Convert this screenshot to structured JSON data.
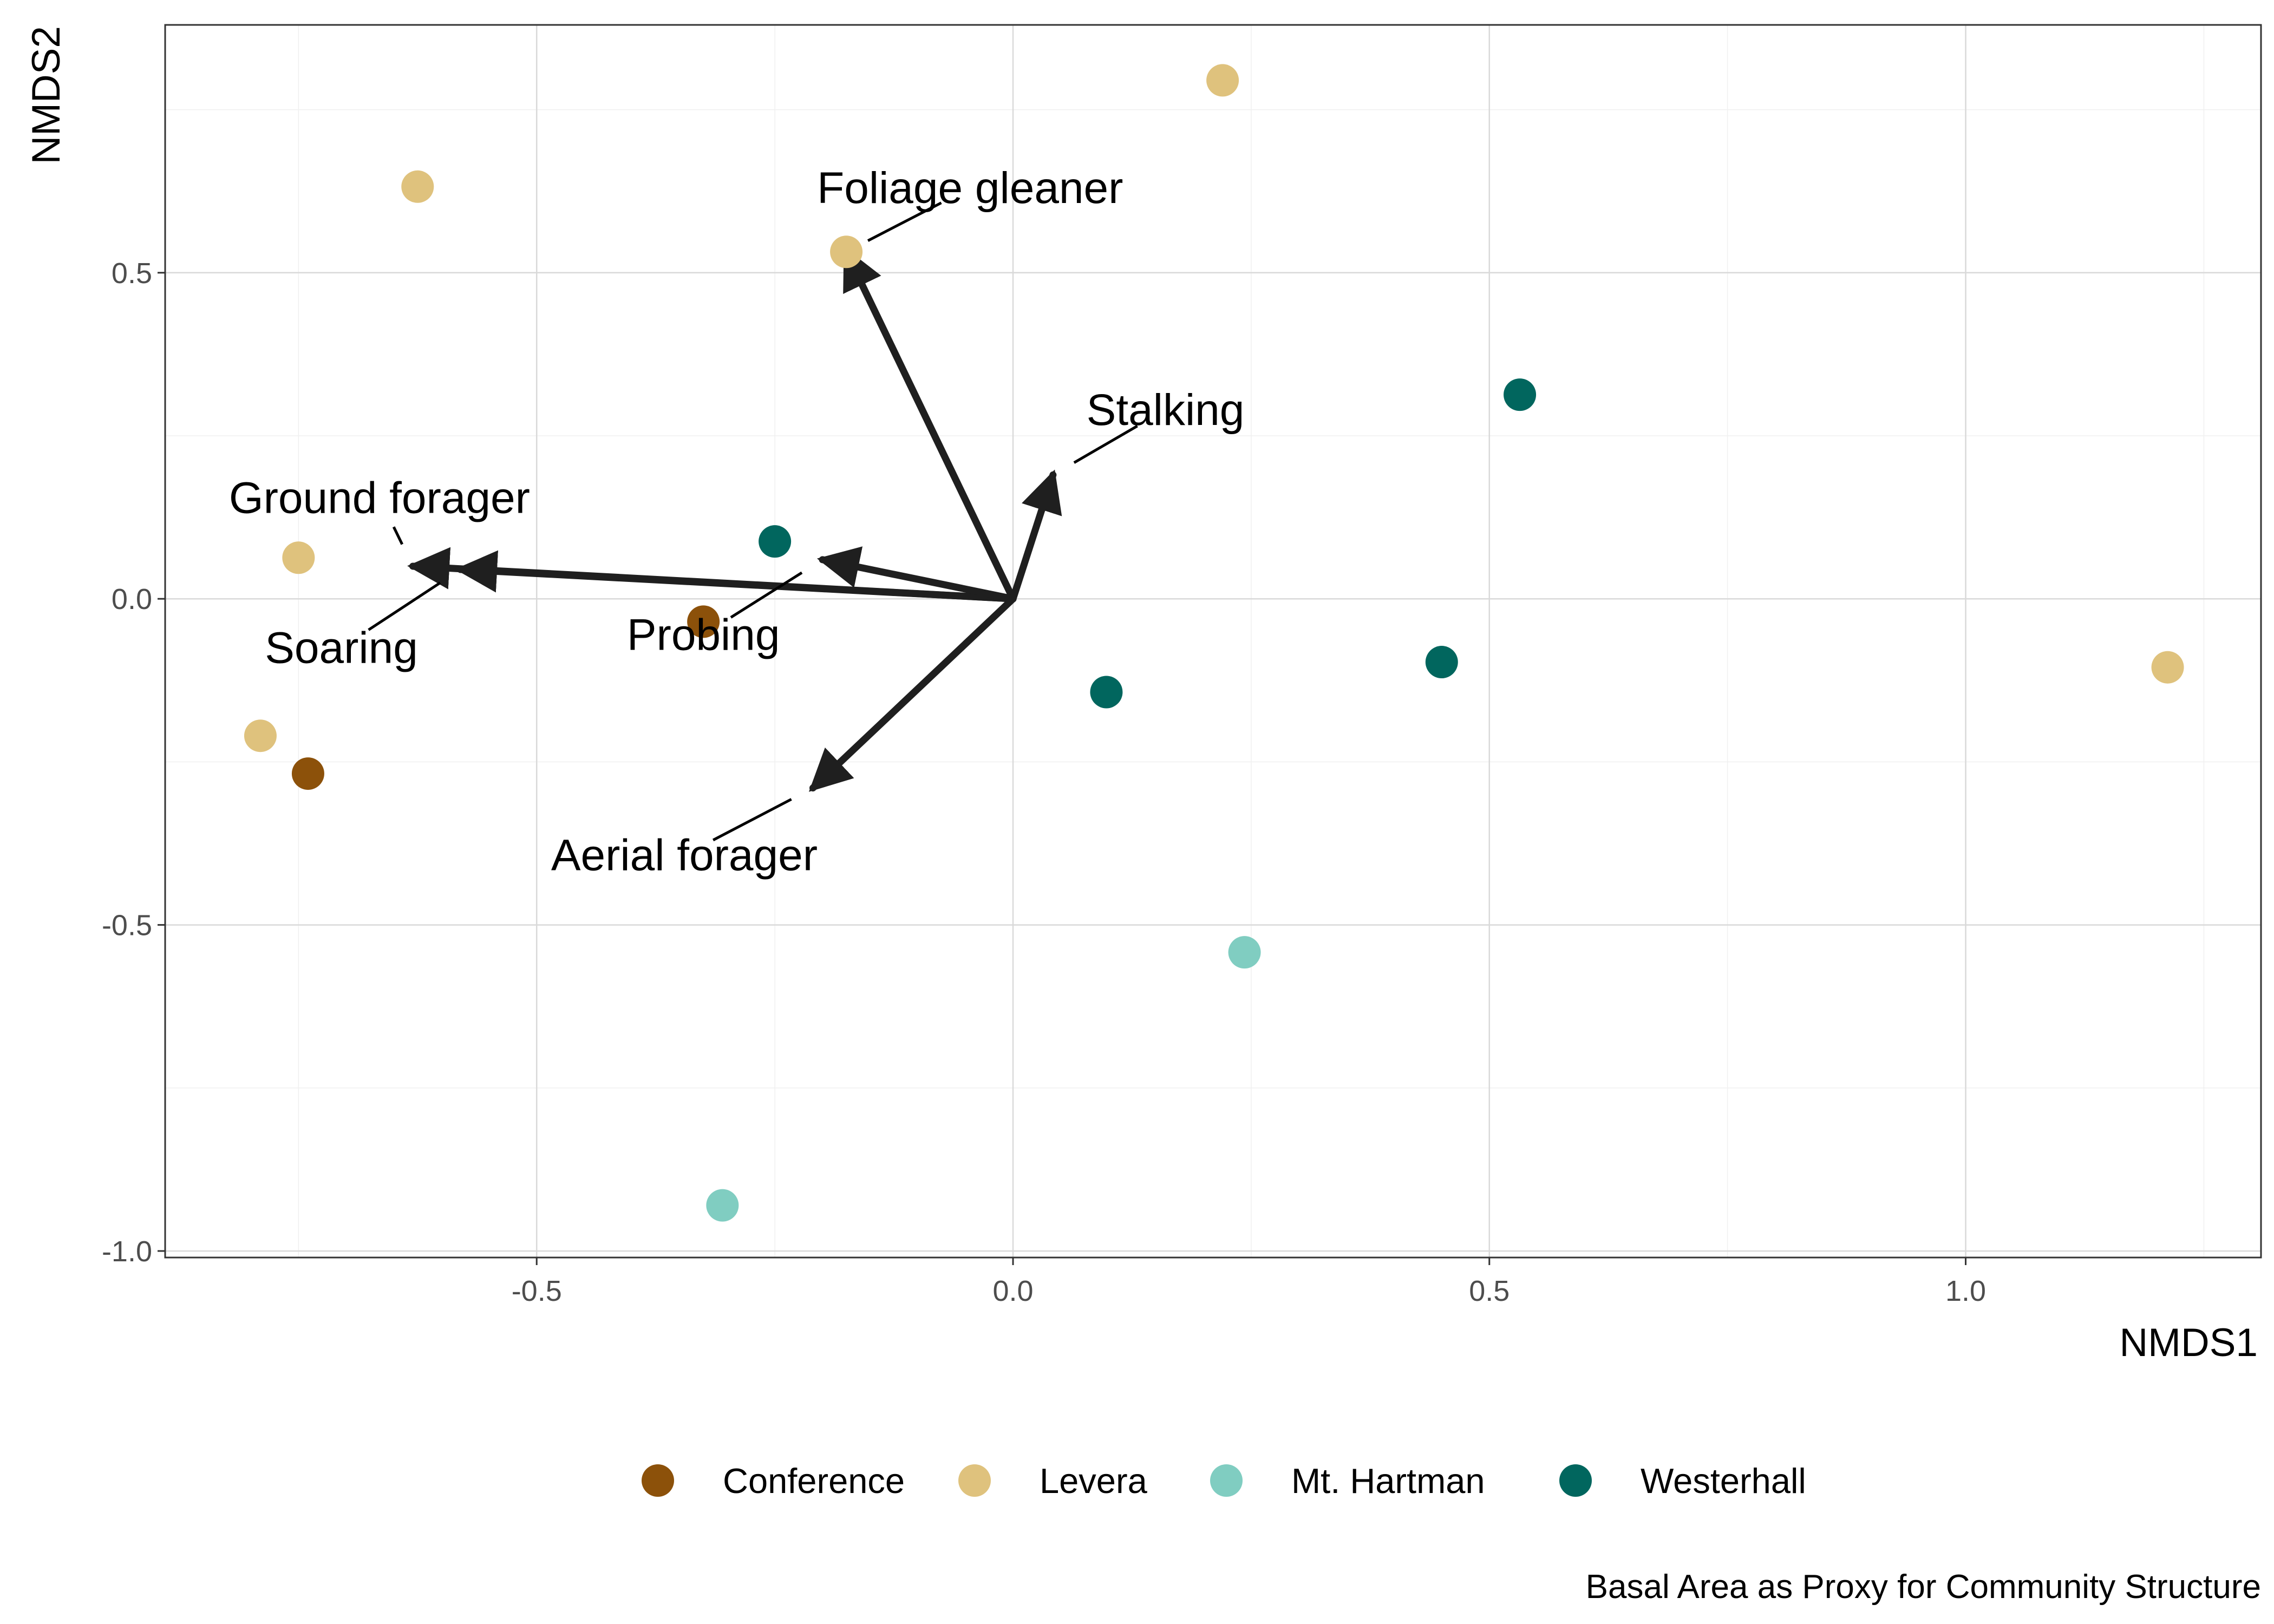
{
  "chart_data": {
    "type": "scatter",
    "xlabel": "NMDS1",
    "ylabel": "NMDS2",
    "caption": "Basal Area as Proxy for Community Structure",
    "xlim": [
      -0.89,
      1.31
    ],
    "ylim": [
      -1.01,
      0.88
    ],
    "x_ticks": [
      -0.5,
      0.0,
      0.5,
      1.0
    ],
    "x_tick_labels": [
      "-0.5",
      "0.0",
      "0.5",
      "1.0"
    ],
    "y_ticks": [
      -1.0,
      -0.5,
      0.0,
      0.5
    ],
    "y_tick_labels": [
      "-1.0",
      "-0.5",
      "0.0",
      "0.5"
    ],
    "grid": true,
    "legend_position": "bottom",
    "series": [
      {
        "name": "Conference",
        "color": "#8c510a",
        "points": [
          [
            -0.325,
            -0.035
          ],
          [
            -0.74,
            -0.268
          ]
        ]
      },
      {
        "name": "Levera",
        "color": "#dfc27d",
        "points": [
          [
            0.22,
            0.795
          ],
          [
            -0.625,
            0.632
          ],
          [
            -0.175,
            0.532
          ],
          [
            -0.75,
            0.063
          ],
          [
            -0.79,
            -0.21
          ],
          [
            1.212,
            -0.105
          ]
        ]
      },
      {
        "name": "Mt. Hartman",
        "color": "#80cdc1",
        "points": [
          [
            0.243,
            -0.542
          ],
          [
            -0.305,
            -0.93
          ]
        ]
      },
      {
        "name": "Westerhall",
        "color": "#01665e",
        "points": [
          [
            0.532,
            0.313
          ],
          [
            -0.25,
            0.088
          ],
          [
            0.45,
            -0.097
          ],
          [
            0.098,
            -0.143
          ]
        ]
      }
    ],
    "vectors": [
      {
        "label": "Foliage gleaner",
        "end": [
          -0.175,
          0.532
        ],
        "label_anchor": [
          -0.045,
          0.63
        ]
      },
      {
        "label": "Stalking",
        "end": [
          0.042,
          0.19
        ],
        "label_anchor": [
          0.16,
          0.29
        ]
      },
      {
        "label": "Ground forager",
        "end": [
          -0.63,
          0.05
        ],
        "label_anchor": [
          -0.665,
          0.155
        ]
      },
      {
        "label": "Soaring",
        "end": [
          -0.58,
          0.045
        ],
        "label_anchor": [
          -0.705,
          -0.075
        ]
      },
      {
        "label": "Probing",
        "end": [
          -0.2,
          0.06
        ],
        "label_anchor": [
          -0.325,
          -0.055
        ]
      },
      {
        "label": "Aerial forager",
        "end": [
          -0.21,
          -0.29
        ],
        "label_anchor": [
          -0.345,
          -0.393
        ]
      }
    ]
  }
}
